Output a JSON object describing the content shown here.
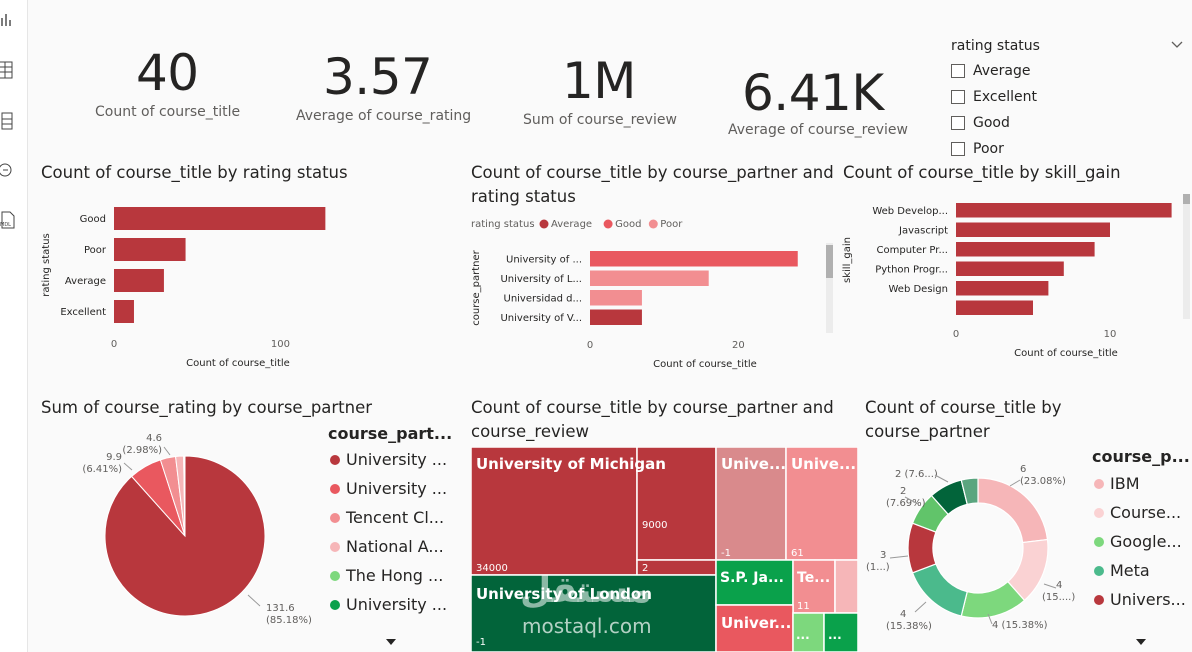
{
  "kpis": [
    {
      "value": "40",
      "label": "Count of course_title"
    },
    {
      "value": "3.57",
      "label": "Average of course_rating"
    },
    {
      "value": "1M",
      "label": "Sum of course_review"
    },
    {
      "value": "6.41K",
      "label": "Average of course_review"
    }
  ],
  "slicer": {
    "title": "rating status",
    "items": [
      "Average",
      "Excellent",
      "Good",
      "Poor"
    ]
  },
  "colors": {
    "dark_red": "#b8373d",
    "red": "#e9585f",
    "pink": "#f28e91",
    "light_pink": "#f6b6b8",
    "dark_green": "#02643a",
    "green": "#0aa14b",
    "light_green": "#7dd87d",
    "teal": "#4bba8c",
    "bg": "#fafafa"
  },
  "chart_data": [
    {
      "type": "bar",
      "orientation": "horizontal",
      "title": "Count of course_title by rating status",
      "categories": [
        "Good",
        "Poor",
        "Average",
        "Excellent"
      ],
      "values": [
        127,
        43,
        30,
        12
      ],
      "xlabel": "Count of course_title",
      "ylabel": "rating status",
      "xticks": [
        "0",
        "100"
      ],
      "xlim": [
        0,
        140
      ]
    },
    {
      "type": "bar",
      "orientation": "horizontal",
      "title": "Count of course_title by course_partner and rating status",
      "legend_title": "rating status",
      "legend": [
        "Average",
        "Good",
        "Poor"
      ],
      "categories": [
        "University of ...",
        "University of L...",
        "Universidad d...",
        "University of V..."
      ],
      "values": [
        28,
        16,
        7,
        7
      ],
      "series_of_bar": [
        "Good",
        "Poor",
        "Poor",
        "Average"
      ],
      "xlabel": "Count of course_title",
      "ylabel": "course_partner",
      "xticks": [
        "0",
        "20"
      ],
      "xlim": [
        0,
        31
      ]
    },
    {
      "type": "bar",
      "orientation": "horizontal",
      "title": "Count of course_title by skill_gain",
      "categories": [
        "Web Develop...",
        "Javascript",
        "Computer Pr...",
        "Python Progr...",
        "Web Design",
        ""
      ],
      "values": [
        14,
        10,
        9,
        7,
        6,
        5
      ],
      "xlabel": "Count of course_title",
      "ylabel": "skill_gain",
      "xticks": [
        "0",
        "10"
      ],
      "xlim": [
        0,
        15
      ]
    },
    {
      "type": "pie",
      "title": "Sum of course_rating by course_partner",
      "legend_title": "course_part...",
      "legend": [
        "University ...",
        "University ...",
        "Tencent Cl...",
        "National A...",
        "The Hong ...",
        "University ..."
      ],
      "slices": [
        {
          "label": "131.6",
          "pct": "(85.18%)",
          "value": 131.6
        },
        {
          "label": "9.9",
          "pct": "(6.41%)",
          "value": 9.9
        },
        {
          "label": "4.6",
          "pct": "(2.98%)",
          "value": 4.6
        },
        {
          "label": "",
          "pct": "",
          "value": 2.4
        },
        {
          "label": "",
          "pct": "",
          "value": 0.2
        },
        {
          "label": "",
          "pct": "",
          "value": 0.2
        }
      ]
    },
    {
      "type": "treemap",
      "title": "Count of course_title by course_partner and course_review",
      "tiles": [
        {
          "name": "University of Michigan",
          "value_labels": [
            "34000",
            "9000",
            "2"
          ]
        },
        {
          "name": "University of London",
          "value_labels": [
            "-1"
          ]
        },
        {
          "name": "Unive...",
          "value_labels": [
            "-1"
          ]
        },
        {
          "name": "Unive...",
          "value_labels": [
            "61"
          ]
        },
        {
          "name": "S.P. Ja...",
          "value_labels": []
        },
        {
          "name": "Te...",
          "value_labels": [
            "11"
          ]
        },
        {
          "name": "Univer...",
          "value_labels": []
        },
        {
          "name": "...",
          "value_labels": []
        },
        {
          "name": "...",
          "value_labels": []
        }
      ]
    },
    {
      "type": "pie",
      "donut": true,
      "title": "Count of course_title by course_partner",
      "legend_title": "course_p...",
      "legend": [
        "IBM",
        "Course...",
        "Google...",
        "Meta",
        "Univers..."
      ],
      "slices": [
        {
          "label": "6",
          "pct": "(23.08%)",
          "value": 6
        },
        {
          "label": "4",
          "pct": "(15....)",
          "value": 4
        },
        {
          "label": "4",
          "pct": "(15.38%)",
          "value": 4
        },
        {
          "label": "4",
          "pct": "(15.38%)",
          "value": 4
        },
        {
          "label": "3",
          "pct": "(1...)",
          "value": 3
        },
        {
          "label": "2",
          "pct": "(7.69%)",
          "value": 2
        },
        {
          "label": "2",
          "pct": "(7.6...)",
          "value": 2
        },
        {
          "label": "",
          "pct": "",
          "value": 1
        }
      ]
    }
  ],
  "watermark": {
    "arabic": "مستقل",
    "latin": "mostaql.com"
  }
}
